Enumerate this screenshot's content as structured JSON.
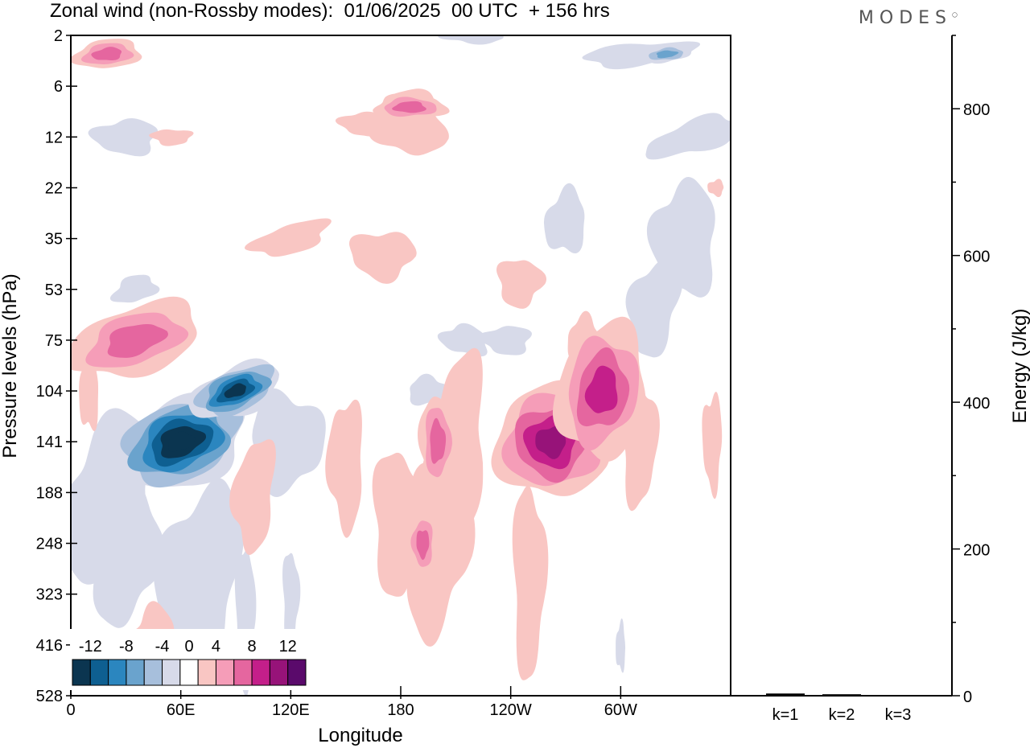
{
  "title": "Zonal wind (non-Rossby modes):  01/06/2025  00 UTC  + 156 hrs",
  "brand": "MODES",
  "chart_data": [
    {
      "type": "heatmap",
      "title": "Zonal wind (non-Rossby modes):  01/06/2025  00 UTC  + 156 hrs",
      "xlabel": "Longitude",
      "ylabel": "Pressure levels (hPa)",
      "x_ticks": [
        "0",
        "60E",
        "120E",
        "180",
        "120W",
        "60W"
      ],
      "y_ticks": [
        "2",
        "6",
        "12",
        "22",
        "35",
        "53",
        "75",
        "104",
        "141",
        "188",
        "248",
        "323",
        "416",
        "528"
      ],
      "colorbar": {
        "ticks": [
          "-12",
          "-8",
          "-4",
          "0",
          "4",
          "8",
          "12"
        ],
        "levels": [
          -14,
          -12,
          -10,
          -8,
          -6,
          -4,
          -2,
          2,
          4,
          6,
          8,
          10,
          12,
          14
        ],
        "colors": [
          "#0b3550",
          "#0e5f91",
          "#2b86bf",
          "#6aa3cd",
          "#a7bfdc",
          "#d7dae9",
          "#ffffff",
          "#f9c6c3",
          "#f59db8",
          "#e5669f",
          "#c41f8a",
          "#971379",
          "#5a0a6b"
        ]
      },
      "features": [
        {
          "sign": "negative",
          "lon": 60,
          "level": 141,
          "peak": -14
        },
        {
          "sign": "negative",
          "lon": 90,
          "level": 104,
          "peak": -12
        },
        {
          "sign": "positive",
          "lon": 262,
          "level": 141,
          "peak": 10
        },
        {
          "sign": "positive",
          "lon": 290,
          "level": 104,
          "peak": 8
        },
        {
          "sign": "positive",
          "lon": 35,
          "level": 75,
          "peak": 6
        },
        {
          "sign": "positive",
          "lon": 200,
          "level": 141,
          "peak": 6
        },
        {
          "sign": "positive",
          "lon": 192,
          "level": 248,
          "peak": 6
        },
        {
          "sign": "positive",
          "lon": 185,
          "level": 8,
          "peak": 6
        },
        {
          "sign": "positive",
          "lon": 20,
          "level": 3,
          "peak": 6
        },
        {
          "sign": "negative",
          "lon": 325,
          "level": 3,
          "peak": -6
        }
      ]
    },
    {
      "type": "bar",
      "categories": [
        "k=1",
        "k=2",
        "k=3"
      ],
      "values": [
        3,
        2,
        1
      ],
      "ylabel": "Energy (J/kg)",
      "ylim": [
        0,
        900
      ],
      "y_ticks": [
        0,
        200,
        400,
        600,
        800
      ],
      "xlabel": ""
    }
  ]
}
